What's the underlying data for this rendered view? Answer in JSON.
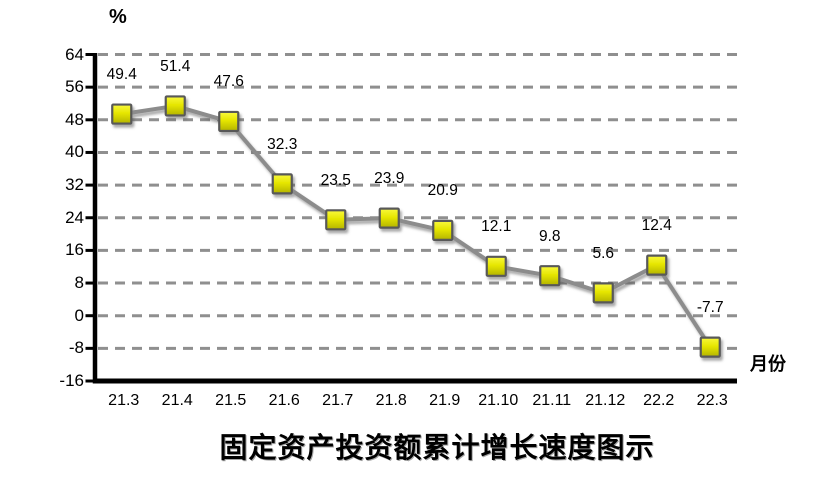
{
  "chart_data": {
    "type": "line",
    "title": "固定资产投资额累计增长速度图示",
    "y_axis_unit_label": "%",
    "x_axis_label": "月份",
    "categories": [
      "21.3",
      "21.4",
      "21.5",
      "21.6",
      "21.7",
      "21.8",
      "21.9",
      "21.10",
      "21.11",
      "21.12",
      "22.2",
      "22.3"
    ],
    "values": [
      49.4,
      51.4,
      47.6,
      32.3,
      23.5,
      23.9,
      20.9,
      12.1,
      9.8,
      5.6,
      12.4,
      -7.7
    ],
    "y_ticks": [
      64,
      56,
      48,
      40,
      32,
      24,
      16,
      8,
      0,
      -8,
      -16
    ],
    "ylim": [
      -16,
      64
    ],
    "grid": "horizontal-dashed",
    "legend": "none",
    "data_labels": "above-points",
    "marker_shape": "square",
    "colors": {
      "marker_fill_top": "#f9f93e",
      "marker_fill_mid": "#e6e600",
      "marker_fill_bottom": "#b3b300",
      "marker_border": "#595959",
      "line": "#8c8c8c",
      "gridline": "#8f8f8f",
      "axis": "#000000",
      "text": "#000000",
      "background": "#ffffff"
    }
  }
}
